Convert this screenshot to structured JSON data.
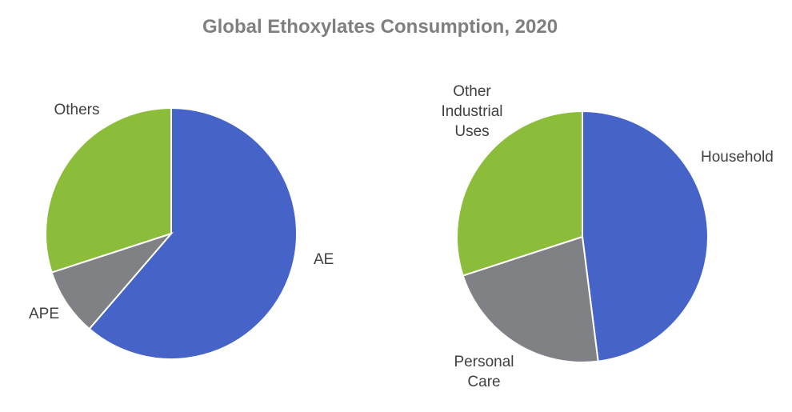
{
  "chart_data": [
    {
      "type": "pie",
      "title": "Global Ethoxylates Consumption, 2020",
      "start_angle_deg": 0,
      "direction": "clockwise",
      "slices": [
        {
          "label": "AE",
          "value": 61.3,
          "color": "#4664c8"
        },
        {
          "label": "APE",
          "value": 8.7,
          "color": "#808184"
        },
        {
          "label": "Others",
          "value": 30.0,
          "color": "#8cbd3a"
        }
      ]
    },
    {
      "type": "pie",
      "start_angle_deg": 0,
      "direction": "clockwise",
      "slices": [
        {
          "label": "Household",
          "value": 48.0,
          "color": "#4664c8"
        },
        {
          "label": "Personal Care",
          "label_lines": [
            "Personal",
            "Care"
          ],
          "value": 22.0,
          "color": "#808184"
        },
        {
          "label": "Other Industrial Uses",
          "label_lines": [
            "Other",
            "Industrial",
            "Uses"
          ],
          "value": 30.0,
          "color": "#8cbd3a"
        }
      ]
    }
  ]
}
